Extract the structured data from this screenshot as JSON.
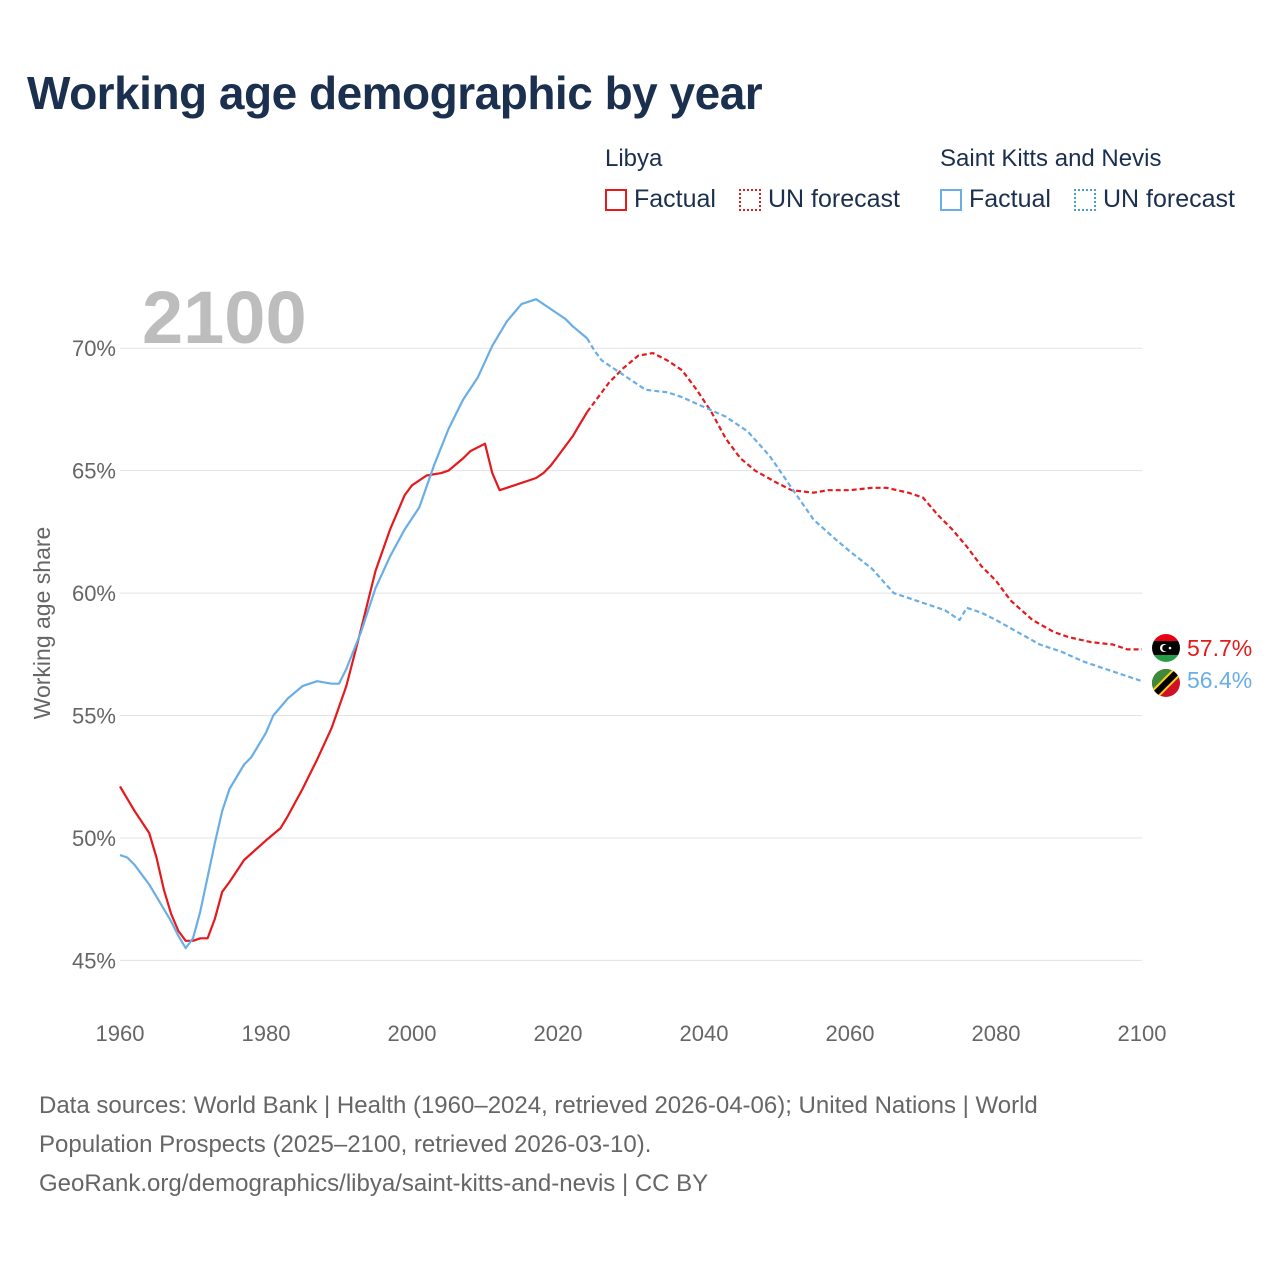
{
  "title": "Working age demographic by year",
  "legend": {
    "groups": [
      {
        "name": "Libya",
        "factual_label": "Factual",
        "forecast_label": "UN forecast",
        "color": "#e41a1c"
      },
      {
        "name": "Saint Kitts and Nevis",
        "factual_label": "Factual",
        "forecast_label": "UN forecast",
        "color": "#6aaee6"
      }
    ]
  },
  "year_label": "2100",
  "footer": {
    "line1": "Data sources: World Bank | Health (1960–2024, retrieved 2026-04-06); United Nations | World",
    "line2": "Population Prospects (2025–2100, retrieved 2026-03-10).",
    "line3": "GeoRank.org/demographics/libya/saint-kitts-and-nevis | CC BY"
  },
  "chart_data": {
    "type": "line",
    "title": "Working age demographic by year",
    "xlabel": "",
    "ylabel": "Working age share",
    "xlim": [
      1960,
      2100
    ],
    "ylim": [
      43.3,
      72.5
    ],
    "x_ticks": [
      1960,
      1980,
      2000,
      2020,
      2040,
      2060,
      2080,
      2100
    ],
    "y_ticks": [
      45,
      50,
      55,
      60,
      65,
      70
    ],
    "y_tick_labels": [
      "45%",
      "50%",
      "55%",
      "60%",
      "65%",
      "70%"
    ],
    "factual_end": 2024,
    "series": [
      {
        "name": "Libya",
        "color": "#e41a1c",
        "end_label": "57.7%",
        "points": [
          [
            1960,
            52.1
          ],
          [
            1962,
            51.1
          ],
          [
            1964,
            50.2
          ],
          [
            1965,
            49.2
          ],
          [
            1966,
            47.9
          ],
          [
            1967,
            46.9
          ],
          [
            1968,
            46.2
          ],
          [
            1969,
            45.8
          ],
          [
            1970,
            45.8
          ],
          [
            1971,
            45.9
          ],
          [
            1972,
            45.9
          ],
          [
            1973,
            46.7
          ],
          [
            1974,
            47.8
          ],
          [
            1975,
            48.2
          ],
          [
            1977,
            49.1
          ],
          [
            1980,
            49.9
          ],
          [
            1982,
            50.4
          ],
          [
            1983,
            50.9
          ],
          [
            1985,
            52.0
          ],
          [
            1987,
            53.2
          ],
          [
            1989,
            54.5
          ],
          [
            1991,
            56.2
          ],
          [
            1993,
            58.5
          ],
          [
            1995,
            60.9
          ],
          [
            1997,
            62.6
          ],
          [
            1999,
            64.0
          ],
          [
            2000,
            64.4
          ],
          [
            2002,
            64.8
          ],
          [
            2004,
            64.9
          ],
          [
            2005,
            65.0
          ],
          [
            2007,
            65.5
          ],
          [
            2008,
            65.8
          ],
          [
            2010,
            66.1
          ],
          [
            2011,
            64.9
          ],
          [
            2012,
            64.2
          ],
          [
            2013,
            64.3
          ],
          [
            2015,
            64.5
          ],
          [
            2017,
            64.7
          ],
          [
            2018,
            64.9
          ],
          [
            2019,
            65.2
          ],
          [
            2020,
            65.6
          ],
          [
            2022,
            66.4
          ],
          [
            2023,
            66.9
          ],
          [
            2024,
            67.4
          ],
          [
            2025,
            67.8
          ],
          [
            2027,
            68.6
          ],
          [
            2029,
            69.2
          ],
          [
            2031,
            69.7
          ],
          [
            2033,
            69.8
          ],
          [
            2035,
            69.5
          ],
          [
            2037,
            69.1
          ],
          [
            2039,
            68.3
          ],
          [
            2041,
            67.4
          ],
          [
            2043,
            66.3
          ],
          [
            2045,
            65.5
          ],
          [
            2047,
            65.0
          ],
          [
            2050,
            64.5
          ],
          [
            2052,
            64.2
          ],
          [
            2055,
            64.1
          ],
          [
            2057,
            64.2
          ],
          [
            2060,
            64.2
          ],
          [
            2063,
            64.3
          ],
          [
            2065,
            64.3
          ],
          [
            2068,
            64.1
          ],
          [
            2070,
            63.9
          ],
          [
            2072,
            63.2
          ],
          [
            2074,
            62.6
          ],
          [
            2076,
            61.9
          ],
          [
            2078,
            61.1
          ],
          [
            2080,
            60.5
          ],
          [
            2082,
            59.7
          ],
          [
            2085,
            58.9
          ],
          [
            2088,
            58.4
          ],
          [
            2090,
            58.2
          ],
          [
            2093,
            58.0
          ],
          [
            2096,
            57.9
          ],
          [
            2098,
            57.7
          ],
          [
            2100,
            57.7
          ]
        ]
      },
      {
        "name": "Saint Kitts and Nevis",
        "color": "#6aaee6",
        "end_label": "56.4%",
        "points": [
          [
            1960,
            49.3
          ],
          [
            1961,
            49.2
          ],
          [
            1962,
            48.9
          ],
          [
            1963,
            48.5
          ],
          [
            1964,
            48.1
          ],
          [
            1965,
            47.6
          ],
          [
            1966,
            47.1
          ],
          [
            1967,
            46.6
          ],
          [
            1968,
            46.0
          ],
          [
            1969,
            45.5
          ],
          [
            1970,
            45.9
          ],
          [
            1971,
            47.0
          ],
          [
            1972,
            48.4
          ],
          [
            1973,
            49.8
          ],
          [
            1974,
            51.1
          ],
          [
            1975,
            52.0
          ],
          [
            1977,
            53.0
          ],
          [
            1978,
            53.3
          ],
          [
            1980,
            54.3
          ],
          [
            1981,
            55.0
          ],
          [
            1983,
            55.7
          ],
          [
            1985,
            56.2
          ],
          [
            1987,
            56.4
          ],
          [
            1989,
            56.3
          ],
          [
            1990,
            56.3
          ],
          [
            1991,
            56.9
          ],
          [
            1993,
            58.4
          ],
          [
            1995,
            60.2
          ],
          [
            1997,
            61.5
          ],
          [
            1999,
            62.6
          ],
          [
            2001,
            63.5
          ],
          [
            2003,
            65.2
          ],
          [
            2005,
            66.7
          ],
          [
            2007,
            67.9
          ],
          [
            2009,
            68.8
          ],
          [
            2011,
            70.1
          ],
          [
            2013,
            71.1
          ],
          [
            2015,
            71.8
          ],
          [
            2017,
            72.0
          ],
          [
            2019,
            71.6
          ],
          [
            2021,
            71.2
          ],
          [
            2022,
            70.9
          ],
          [
            2024,
            70.4
          ],
          [
            2025,
            69.9
          ],
          [
            2026,
            69.5
          ],
          [
            2028,
            69.1
          ],
          [
            2030,
            68.7
          ],
          [
            2032,
            68.3
          ],
          [
            2035,
            68.2
          ],
          [
            2037,
            68.0
          ],
          [
            2040,
            67.6
          ],
          [
            2043,
            67.2
          ],
          [
            2046,
            66.6
          ],
          [
            2049,
            65.6
          ],
          [
            2052,
            64.3
          ],
          [
            2055,
            63.0
          ],
          [
            2058,
            62.2
          ],
          [
            2060,
            61.7
          ],
          [
            2063,
            61.0
          ],
          [
            2066,
            60.0
          ],
          [
            2069,
            59.7
          ],
          [
            2071,
            59.5
          ],
          [
            2073,
            59.3
          ],
          [
            2075,
            58.9
          ],
          [
            2076,
            59.4
          ],
          [
            2078,
            59.2
          ],
          [
            2080,
            58.9
          ],
          [
            2083,
            58.4
          ],
          [
            2086,
            57.9
          ],
          [
            2089,
            57.6
          ],
          [
            2092,
            57.2
          ],
          [
            2095,
            56.9
          ],
          [
            2098,
            56.6
          ],
          [
            2100,
            56.4
          ]
        ]
      }
    ]
  }
}
